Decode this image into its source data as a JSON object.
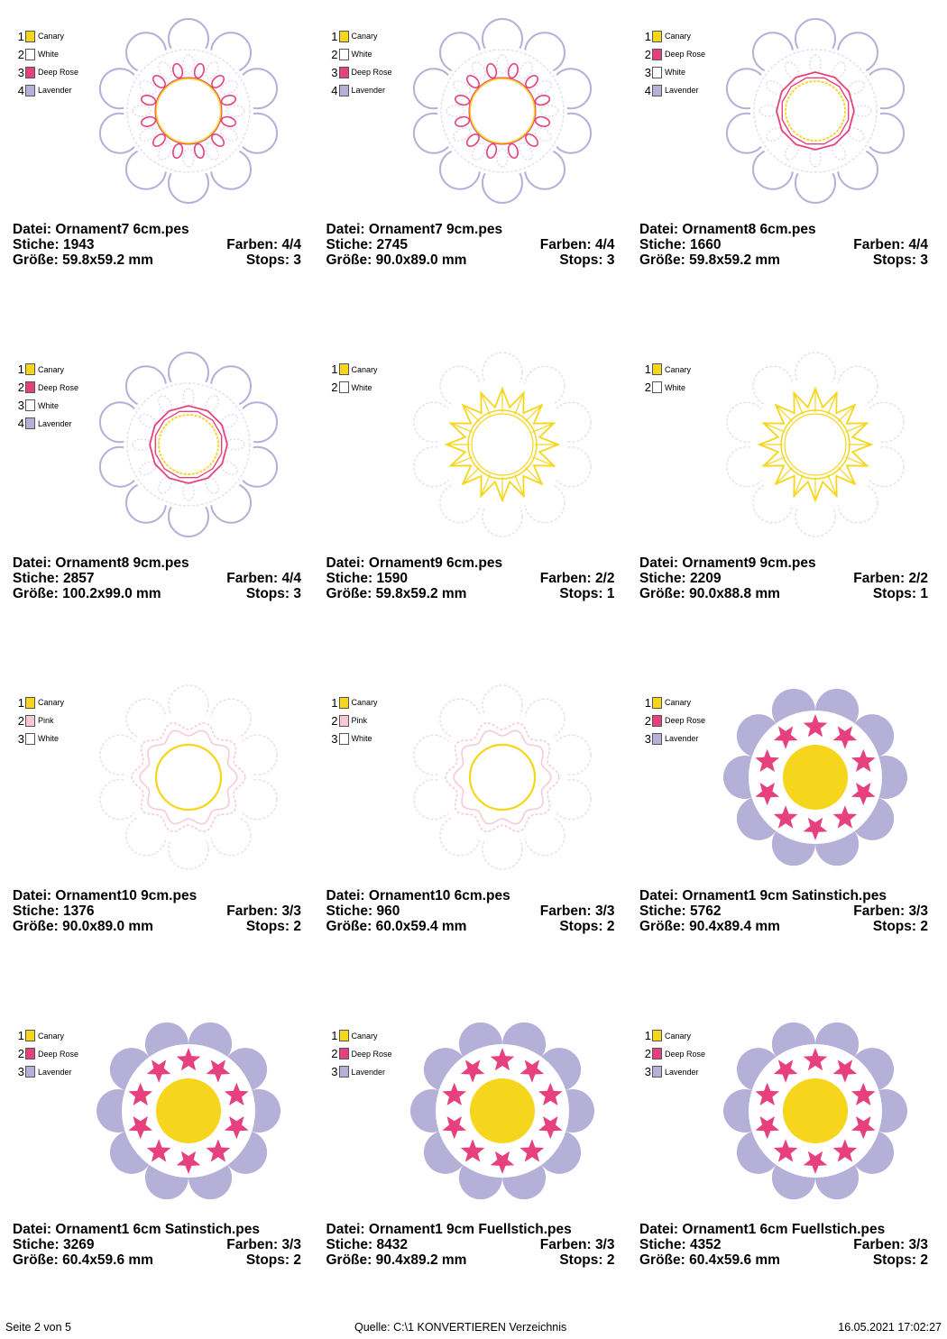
{
  "colors": {
    "Canary": "#f5d61c",
    "White": "#ffffff",
    "Deep Rose": "#e6417e",
    "Lavender": "#b4b0d8",
    "Pink": "#f7c7d2"
  },
  "labels": {
    "file": "Datei:",
    "stitches": "Stiche:",
    "size": "Größe:",
    "colors": "Farben:",
    "stops": "Stops:"
  },
  "designs": [
    {
      "file": "Ornament7 6cm.pes",
      "stitches": "1943",
      "colors": "4/4",
      "size": "59.8x59.2 mm",
      "stops": "3",
      "style": "o7",
      "threads": [
        {
          "num": "1",
          "name": "Canary"
        },
        {
          "num": "2",
          "name": "White"
        },
        {
          "num": "3",
          "name": "Deep Rose"
        },
        {
          "num": "4",
          "name": "Lavender"
        }
      ]
    },
    {
      "file": "Ornament7 9cm.pes",
      "stitches": "2745",
      "colors": "4/4",
      "size": "90.0x89.0 mm",
      "stops": "3",
      "style": "o7",
      "threads": [
        {
          "num": "1",
          "name": "Canary"
        },
        {
          "num": "2",
          "name": "White"
        },
        {
          "num": "3",
          "name": "Deep Rose"
        },
        {
          "num": "4",
          "name": "Lavender"
        }
      ]
    },
    {
      "file": "Ornament8 6cm.pes",
      "stitches": "1660",
      "colors": "4/4",
      "size": "59.8x59.2 mm",
      "stops": "3",
      "style": "o8",
      "threads": [
        {
          "num": "1",
          "name": "Canary"
        },
        {
          "num": "2",
          "name": "Deep Rose"
        },
        {
          "num": "3",
          "name": "White"
        },
        {
          "num": "4",
          "name": "Lavender"
        }
      ]
    },
    {
      "file": "Ornament8 9cm.pes",
      "stitches": "2857",
      "colors": "4/4",
      "size": "100.2x99.0 mm",
      "stops": "3",
      "style": "o8",
      "threads": [
        {
          "num": "1",
          "name": "Canary"
        },
        {
          "num": "2",
          "name": "Deep Rose"
        },
        {
          "num": "3",
          "name": "White"
        },
        {
          "num": "4",
          "name": "Lavender"
        }
      ]
    },
    {
      "file": "Ornament9 6cm.pes",
      "stitches": "1590",
      "colors": "2/2",
      "size": "59.8x59.2 mm",
      "stops": "1",
      "style": "o9",
      "threads": [
        {
          "num": "1",
          "name": "Canary"
        },
        {
          "num": "2",
          "name": "White"
        }
      ]
    },
    {
      "file": "Ornament9 9cm.pes",
      "stitches": "2209",
      "colors": "2/2",
      "size": "90.0x88.8 mm",
      "stops": "1",
      "style": "o9",
      "threads": [
        {
          "num": "1",
          "name": "Canary"
        },
        {
          "num": "2",
          "name": "White"
        }
      ]
    },
    {
      "file": "Ornament10 9cm.pes",
      "stitches": "1376",
      "colors": "3/3",
      "size": "90.0x89.0 mm",
      "stops": "2",
      "style": "o10",
      "threads": [
        {
          "num": "1",
          "name": "Canary"
        },
        {
          "num": "2",
          "name": "Pink"
        },
        {
          "num": "3",
          "name": "White"
        }
      ]
    },
    {
      "file": "Ornament10 6cm.pes",
      "stitches": "960",
      "colors": "3/3",
      "size": "60.0x59.4 mm",
      "stops": "2",
      "style": "o10",
      "threads": [
        {
          "num": "1",
          "name": "Canary"
        },
        {
          "num": "2",
          "name": "Pink"
        },
        {
          "num": "3",
          "name": "White"
        }
      ]
    },
    {
      "file": "Ornament1 9cm Satinstich.pes",
      "stitches": "5762",
      "colors": "3/3",
      "size": "90.4x89.4 mm",
      "stops": "2",
      "style": "o1",
      "threads": [
        {
          "num": "1",
          "name": "Canary"
        },
        {
          "num": "2",
          "name": "Deep Rose"
        },
        {
          "num": "3",
          "name": "Lavender"
        }
      ]
    },
    {
      "file": "Ornament1 6cm Satinstich.pes",
      "stitches": "3269",
      "colors": "3/3",
      "size": "60.4x59.6 mm",
      "stops": "2",
      "style": "o1",
      "threads": [
        {
          "num": "1",
          "name": "Canary"
        },
        {
          "num": "2",
          "name": "Deep Rose"
        },
        {
          "num": "3",
          "name": "Lavender"
        }
      ]
    },
    {
      "file": "Ornament1 9cm Fuellstich.pes",
      "stitches": "8432",
      "colors": "3/3",
      "size": "90.4x89.2 mm",
      "stops": "2",
      "style": "o1",
      "threads": [
        {
          "num": "1",
          "name": "Canary"
        },
        {
          "num": "2",
          "name": "Deep Rose"
        },
        {
          "num": "3",
          "name": "Lavender"
        }
      ]
    },
    {
      "file": "Ornament1 6cm Fuellstich.pes",
      "stitches": "4352",
      "colors": "3/3",
      "size": "60.4x59.6 mm",
      "stops": "2",
      "style": "o1",
      "threads": [
        {
          "num": "1",
          "name": "Canary"
        },
        {
          "num": "2",
          "name": "Deep Rose"
        },
        {
          "num": "3",
          "name": "Lavender"
        }
      ]
    }
  ],
  "footer": {
    "page": "Seite 2 von 5",
    "source": "Quelle: C:\\1 KONVERTIEREN Verzeichnis",
    "timestamp": "16.05.2021 17:02:27"
  }
}
